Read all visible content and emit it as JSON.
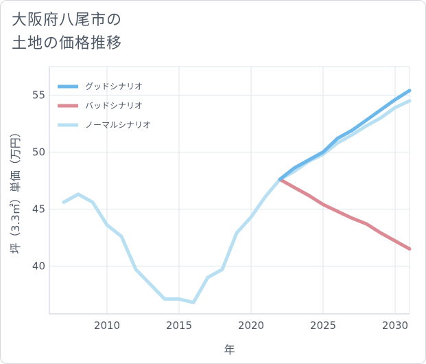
{
  "title_lines": [
    "大阪府八尾市の",
    "土地の価格推移"
  ],
  "chart_data": {
    "type": "line",
    "xlabel": "年",
    "ylabel": "坪（3.3㎡）単価（万円）",
    "xlim": [
      2006,
      2031
    ],
    "ylim": [
      35.8,
      57.5
    ],
    "xticks": [
      2010,
      2015,
      2020,
      2025,
      2030
    ],
    "yticks": [
      40,
      45,
      50,
      55
    ],
    "grid": true,
    "legend_position": "top-left",
    "series": [
      {
        "name": "グッドシナリオ",
        "color": "#6cb8ea",
        "x": [
          2022,
          2023,
          2024,
          2025,
          2026,
          2027,
          2028,
          2029,
          2030,
          2031
        ],
        "y": [
          47.6,
          48.6,
          49.3,
          50.0,
          51.2,
          51.9,
          52.8,
          53.7,
          54.6,
          55.4
        ]
      },
      {
        "name": "バッドシナリオ",
        "color": "#dc8b94",
        "x": [
          2022,
          2023,
          2024,
          2025,
          2026,
          2027,
          2028,
          2029,
          2030,
          2031
        ],
        "y": [
          47.6,
          46.9,
          46.2,
          45.4,
          44.8,
          44.2,
          43.7,
          42.9,
          42.2,
          41.5
        ]
      },
      {
        "name": "ノーマルシナリオ",
        "color": "#b8e0f2",
        "x": [
          2007,
          2008,
          2009,
          2010,
          2011,
          2012,
          2013,
          2014,
          2015,
          2016,
          2017,
          2018,
          2019,
          2020,
          2021,
          2022,
          2023,
          2024,
          2025,
          2026,
          2027,
          2028,
          2029,
          2030,
          2031
        ],
        "y": [
          45.6,
          46.3,
          45.6,
          43.6,
          42.6,
          39.7,
          38.4,
          37.1,
          37.1,
          36.8,
          39.0,
          39.7,
          42.9,
          44.3,
          46.1,
          47.6,
          48.3,
          49.2,
          49.8,
          50.8,
          51.5,
          52.3,
          53.0,
          53.9,
          54.5
        ]
      }
    ]
  }
}
